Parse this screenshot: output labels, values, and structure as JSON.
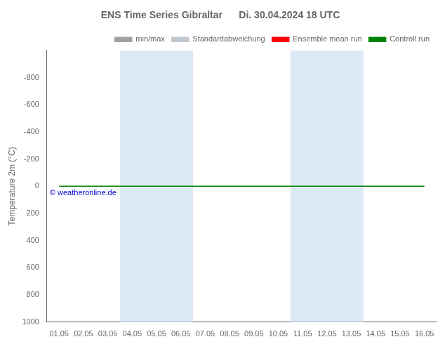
{
  "chart_data": {
    "type": "line",
    "title": "ENS Time Series Gibraltar      Di. 30.04.2024 18 UTC",
    "ylabel": "Temperature 2m (°C)",
    "categories": [
      "01.05",
      "02.05",
      "03.05",
      "04.05",
      "05.05",
      "06.05",
      "07.05",
      "08.05",
      "09.05",
      "10.05",
      "11.05",
      "12.05",
      "13.05",
      "14.05",
      "15.05",
      "16.05"
    ],
    "series": [
      {
        "name": "min/max",
        "color": "#a0a0a0",
        "values": [
          null,
          null,
          null,
          null,
          null,
          null,
          null,
          null,
          null,
          null,
          null,
          null,
          null,
          null,
          null,
          null
        ]
      },
      {
        "name": "Standardabweichung",
        "color": "#c0c8d0",
        "values": [
          null,
          null,
          null,
          null,
          null,
          null,
          null,
          null,
          null,
          null,
          null,
          null,
          null,
          null,
          null,
          null
        ]
      },
      {
        "name": "Ensemble mean run",
        "color": "#ff0000",
        "values": [
          null,
          null,
          null,
          null,
          null,
          null,
          null,
          null,
          null,
          null,
          null,
          null,
          null,
          null,
          null,
          null
        ]
      },
      {
        "name": "Controll run",
        "color": "#008000",
        "values": [
          0,
          0,
          0,
          0,
          0,
          0,
          0,
          0,
          0,
          0,
          0,
          0,
          0,
          0,
          0,
          0
        ]
      }
    ],
    "ylim": [
      1000,
      -1000
    ],
    "yticks": [
      -800,
      -600,
      -400,
      -200,
      0,
      200,
      400,
      600,
      800,
      1000
    ],
    "grid": false,
    "legend": "upper right",
    "shaded_regions": [
      {
        "x0": "04.05",
        "x1": "06.05",
        "color": "#dce9f7"
      },
      {
        "x0": "11.05",
        "x1": "13.05",
        "color": "#dce9f7"
      }
    ],
    "annotations": [
      {
        "text": "© weatheronline.de",
        "x": "01.05",
        "y": 0,
        "color": "#0000cc"
      }
    ]
  }
}
